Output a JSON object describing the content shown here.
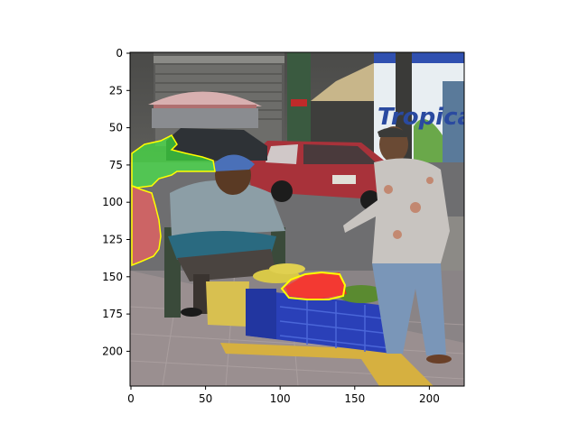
{
  "figure": {
    "x_ticks": [
      "0",
      "50",
      "100",
      "150",
      "200"
    ],
    "y_ticks": [
      "0",
      "25",
      "50",
      "75",
      "100",
      "125",
      "150",
      "175",
      "200"
    ]
  },
  "photo": {
    "sign_text": "Tropical",
    "colors": {
      "road": "#6e6e70",
      "sidewalk": "#9a8f90",
      "crate": "#2a40b8",
      "tomatoes": "#e03020",
      "overlay_green": "#40ff40",
      "overlay_red": "#ff6060",
      "overlay_outline": "#ffff00"
    }
  }
}
